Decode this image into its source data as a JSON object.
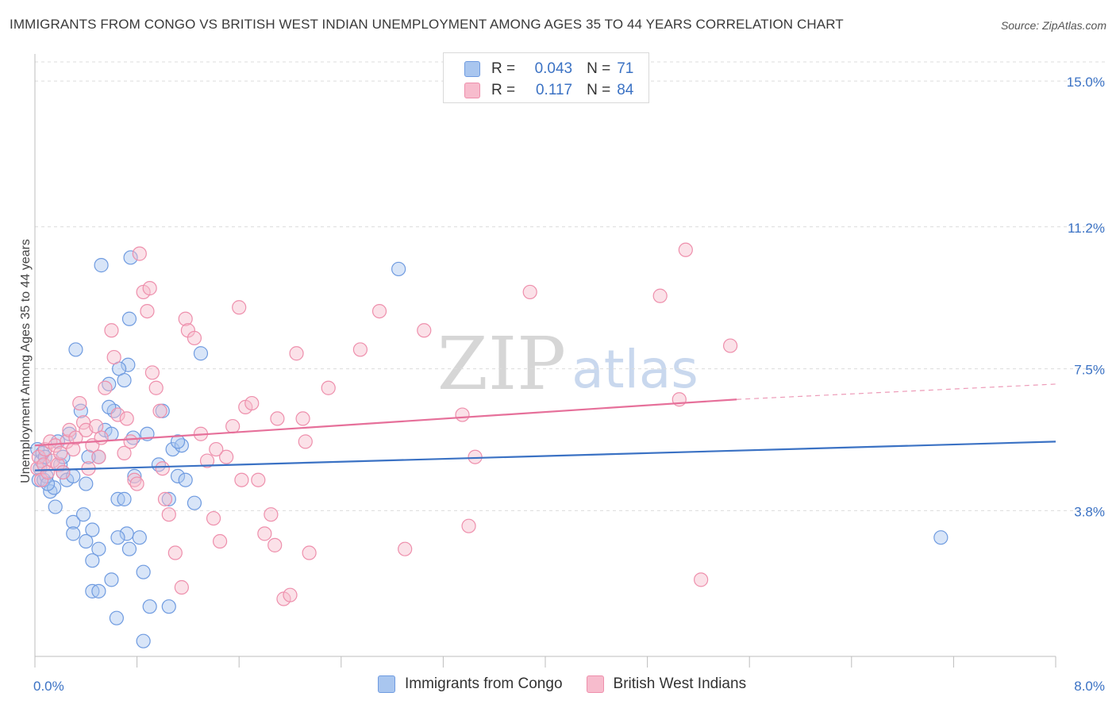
{
  "header": {
    "title": "IMMIGRANTS FROM CONGO VS BRITISH WEST INDIAN UNEMPLOYMENT AMONG AGES 35 TO 44 YEARS CORRELATION CHART",
    "source": "Source: ZipAtlas.com"
  },
  "watermark": {
    "zip": "ZIP",
    "atlas": "atlas"
  },
  "legend_top": {
    "rows": [
      {
        "r_label": "R =",
        "r_value": "0.043",
        "n_label": "N =",
        "n_value": "71"
      },
      {
        "r_label": "R =",
        "r_value": "0.117",
        "n_label": "N =",
        "n_value": "84"
      }
    ]
  },
  "legend_bottom": {
    "items": [
      {
        "label": "Immigrants from Congo"
      },
      {
        "label": "British West Indians"
      }
    ]
  },
  "colors": {
    "blue_fill": "#a9c6ef",
    "blue_stroke": "#6f9be0",
    "blue_line": "#3b72c4",
    "pink_fill": "#f7bccd",
    "pink_stroke": "#ee8fac",
    "pink_line": "#e6709a",
    "grid": "#dcdcdc",
    "tick_label": "#3b72c4"
  },
  "chart_data": {
    "type": "scatter",
    "ylabel": "Unemployment Among Ages 35 to 44 years",
    "xlim": [
      0,
      8
    ],
    "ylim": [
      0,
      15.5
    ],
    "x_tick_labels": [
      {
        "value": 0,
        "label": "0.0%"
      },
      {
        "value": 8,
        "label": "8.0%"
      }
    ],
    "y_tick_labels": [
      {
        "value": 3.8,
        "label": "3.8%"
      },
      {
        "value": 7.5,
        "label": "7.5%"
      },
      {
        "value": 11.2,
        "label": "11.2%"
      },
      {
        "value": 15.0,
        "label": "15.0%"
      }
    ],
    "grid": true,
    "series": [
      {
        "name": "Immigrants from Congo",
        "color": "blue",
        "trend": {
          "x": [
            0,
            8
          ],
          "y": [
            4.85,
            5.6
          ]
        },
        "points": [
          [
            0.02,
            5.4
          ],
          [
            0.03,
            4.6
          ],
          [
            0.04,
            4.9
          ],
          [
            0.05,
            5.1
          ],
          [
            0.06,
            5.3
          ],
          [
            0.07,
            4.6
          ],
          [
            0.08,
            5.2
          ],
          [
            0.09,
            4.7
          ],
          [
            0.12,
            4.3
          ],
          [
            0.15,
            4.4
          ],
          [
            0.18,
            5.6
          ],
          [
            0.2,
            5.0
          ],
          [
            0.22,
            4.8
          ],
          [
            0.25,
            4.6
          ],
          [
            0.27,
            5.8
          ],
          [
            0.3,
            4.7
          ],
          [
            0.16,
            3.9
          ],
          [
            0.3,
            3.5
          ],
          [
            0.3,
            3.2
          ],
          [
            0.38,
            3.7
          ],
          [
            0.45,
            3.3
          ],
          [
            0.4,
            3.0
          ],
          [
            0.5,
            2.8
          ],
          [
            0.45,
            2.5
          ],
          [
            0.5,
            5.2
          ],
          [
            0.55,
            5.9
          ],
          [
            0.6,
            5.8
          ],
          [
            0.62,
            6.4
          ],
          [
            0.58,
            6.5
          ],
          [
            0.36,
            6.4
          ],
          [
            0.4,
            4.5
          ],
          [
            0.42,
            5.2
          ],
          [
            0.32,
            8.0
          ],
          [
            0.52,
            10.2
          ],
          [
            0.75,
            10.4
          ],
          [
            0.74,
            8.8
          ],
          [
            0.73,
            7.6
          ],
          [
            0.66,
            7.5
          ],
          [
            0.7,
            7.2
          ],
          [
            0.58,
            7.1
          ],
          [
            0.77,
            5.7
          ],
          [
            0.78,
            4.7
          ],
          [
            0.65,
            4.1
          ],
          [
            0.7,
            4.1
          ],
          [
            0.72,
            3.2
          ],
          [
            0.74,
            2.8
          ],
          [
            0.82,
            3.1
          ],
          [
            0.85,
            2.2
          ],
          [
            0.65,
            3.1
          ],
          [
            0.6,
            2.0
          ],
          [
            0.45,
            1.7
          ],
          [
            0.5,
            1.7
          ],
          [
            0.64,
            1.0
          ],
          [
            0.85,
            0.4
          ],
          [
            0.9,
            1.3
          ],
          [
            1.05,
            1.3
          ],
          [
            1.0,
            6.4
          ],
          [
            1.08,
            5.4
          ],
          [
            1.12,
            4.7
          ],
          [
            1.15,
            5.5
          ],
          [
            1.18,
            4.6
          ],
          [
            1.12,
            5.6
          ],
          [
            1.05,
            4.1
          ],
          [
            1.3,
            7.9
          ],
          [
            2.85,
            10.1
          ],
          [
            7.1,
            3.1
          ],
          [
            0.88,
            5.8
          ],
          [
            0.97,
            5.0
          ],
          [
            1.25,
            4.0
          ],
          [
            0.22,
            5.2
          ],
          [
            0.1,
            4.5
          ]
        ]
      },
      {
        "name": "British West Indians",
        "color": "pink",
        "trend": {
          "x": [
            0,
            5.5
          ],
          "y": [
            5.5,
            6.7
          ]
        },
        "trend_dashed": {
          "x": [
            5.5,
            8.0
          ],
          "y": [
            6.7,
            7.1
          ]
        },
        "points": [
          [
            0.02,
            4.9
          ],
          [
            0.03,
            5.2
          ],
          [
            0.05,
            4.6
          ],
          [
            0.07,
            5.0
          ],
          [
            0.08,
            5.4
          ],
          [
            0.1,
            4.8
          ],
          [
            0.12,
            5.6
          ],
          [
            0.14,
            5.1
          ],
          [
            0.16,
            5.5
          ],
          [
            0.18,
            5.0
          ],
          [
            0.2,
            5.3
          ],
          [
            0.22,
            4.8
          ],
          [
            0.25,
            5.6
          ],
          [
            0.27,
            5.9
          ],
          [
            0.3,
            5.4
          ],
          [
            0.32,
            5.7
          ],
          [
            0.35,
            6.6
          ],
          [
            0.38,
            6.1
          ],
          [
            0.4,
            5.9
          ],
          [
            0.42,
            4.9
          ],
          [
            0.45,
            5.5
          ],
          [
            0.48,
            6.0
          ],
          [
            0.5,
            5.2
          ],
          [
            0.52,
            5.7
          ],
          [
            0.55,
            7.0
          ],
          [
            0.6,
            8.5
          ],
          [
            0.62,
            7.8
          ],
          [
            0.65,
            6.3
          ],
          [
            0.7,
            5.3
          ],
          [
            0.72,
            6.2
          ],
          [
            0.75,
            5.6
          ],
          [
            0.78,
            4.6
          ],
          [
            0.8,
            4.5
          ],
          [
            0.82,
            10.5
          ],
          [
            0.85,
            9.5
          ],
          [
            0.88,
            9.0
          ],
          [
            0.9,
            9.6
          ],
          [
            0.92,
            7.4
          ],
          [
            0.95,
            7.0
          ],
          [
            0.98,
            6.4
          ],
          [
            1.0,
            4.9
          ],
          [
            1.02,
            4.1
          ],
          [
            1.05,
            3.7
          ],
          [
            1.1,
            2.7
          ],
          [
            1.15,
            1.8
          ],
          [
            1.18,
            8.8
          ],
          [
            1.2,
            8.5
          ],
          [
            1.25,
            8.3
          ],
          [
            1.3,
            5.8
          ],
          [
            1.35,
            5.1
          ],
          [
            1.4,
            3.6
          ],
          [
            1.45,
            3.0
          ],
          [
            1.5,
            5.2
          ],
          [
            1.55,
            6.0
          ],
          [
            1.6,
            9.1
          ],
          [
            1.62,
            4.6
          ],
          [
            1.65,
            6.5
          ],
          [
            1.7,
            6.6
          ],
          [
            1.75,
            4.6
          ],
          [
            1.8,
            3.2
          ],
          [
            1.85,
            3.7
          ],
          [
            1.88,
            2.9
          ],
          [
            1.9,
            6.2
          ],
          [
            1.95,
            1.5
          ],
          [
            2.0,
            1.6
          ],
          [
            2.05,
            7.9
          ],
          [
            2.1,
            6.2
          ],
          [
            2.12,
            5.6
          ],
          [
            2.15,
            2.7
          ],
          [
            2.3,
            7.0
          ],
          [
            2.55,
            8.0
          ],
          [
            2.7,
            9.0
          ],
          [
            2.9,
            2.8
          ],
          [
            3.05,
            8.5
          ],
          [
            3.35,
            6.3
          ],
          [
            3.4,
            3.4
          ],
          [
            3.45,
            5.2
          ],
          [
            3.88,
            9.5
          ],
          [
            4.9,
            9.4
          ],
          [
            5.05,
            6.7
          ],
          [
            5.1,
            10.6
          ],
          [
            5.22,
            2.0
          ],
          [
            5.45,
            8.1
          ],
          [
            1.42,
            5.4
          ]
        ]
      }
    ]
  }
}
